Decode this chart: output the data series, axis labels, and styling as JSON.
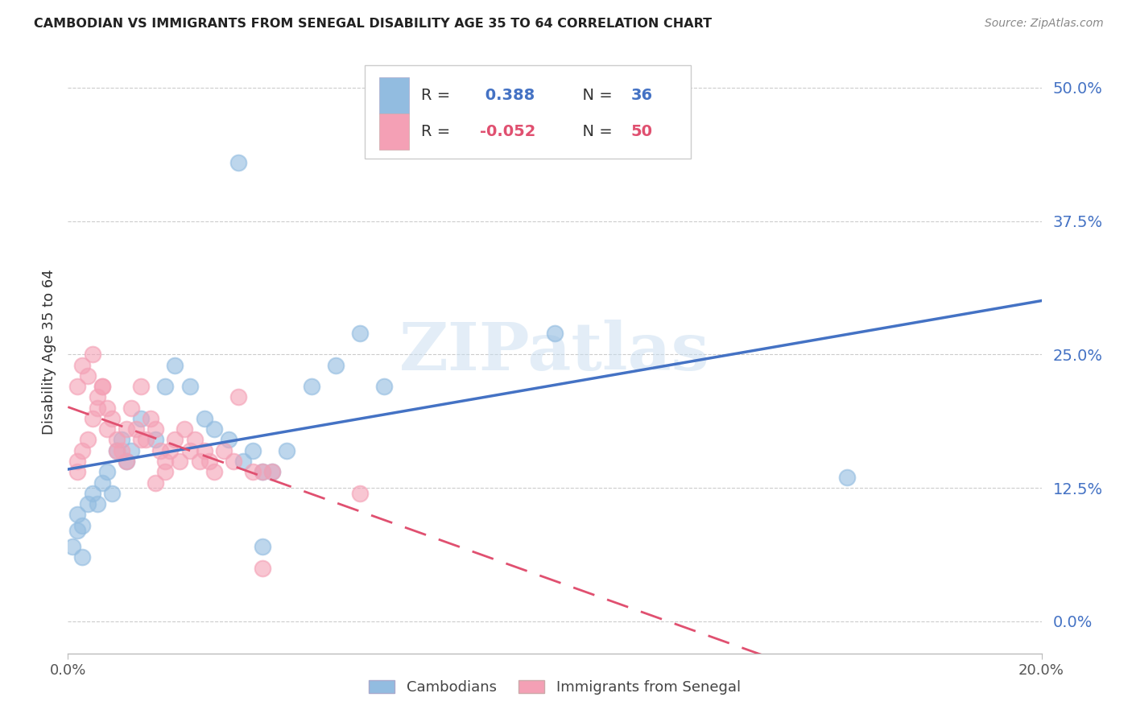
{
  "title": "CAMBODIAN VS IMMIGRANTS FROM SENEGAL DISABILITY AGE 35 TO 64 CORRELATION CHART",
  "source": "Source: ZipAtlas.com",
  "ylabel": "Disability Age 35 to 64",
  "ytick_labels": [
    "0.0%",
    "12.5%",
    "25.0%",
    "37.5%",
    "50.0%"
  ],
  "ytick_values": [
    0.0,
    0.125,
    0.25,
    0.375,
    0.5
  ],
  "xmin": 0.0,
  "xmax": 0.2,
  "ymin": -0.03,
  "ymax": 0.535,
  "cambodian_color": "#92bce0",
  "senegal_color": "#f4a0b5",
  "cambodian_line_color": "#4472c4",
  "senegal_line_color": "#e05070",
  "legend_R_color": "#4472c4",
  "legend_N_color": "#4472c4",
  "senegal_legend_R_color": "#e05070",
  "senegal_legend_N_color": "#e05070",
  "cambodian_R": 0.388,
  "cambodian_N": 36,
  "senegal_R": -0.052,
  "senegal_N": 50,
  "legend_label_cambodian": "Cambodians",
  "legend_label_senegal": "Immigrants from Senegal",
  "watermark": "ZIPatlas",
  "cambodian_scatter_x": [
    0.002,
    0.003,
    0.004,
    0.005,
    0.006,
    0.007,
    0.008,
    0.009,
    0.01,
    0.011,
    0.012,
    0.013,
    0.015,
    0.018,
    0.02,
    0.022,
    0.025,
    0.028,
    0.03,
    0.033,
    0.036,
    0.038,
    0.04,
    0.042,
    0.045,
    0.05,
    0.055,
    0.065,
    0.001,
    0.002,
    0.003,
    0.16,
    0.1,
    0.06,
    0.04,
    0.035
  ],
  "cambodian_scatter_y": [
    0.1,
    0.09,
    0.11,
    0.12,
    0.11,
    0.13,
    0.14,
    0.12,
    0.16,
    0.17,
    0.15,
    0.16,
    0.19,
    0.17,
    0.22,
    0.24,
    0.22,
    0.19,
    0.18,
    0.17,
    0.15,
    0.16,
    0.14,
    0.14,
    0.16,
    0.22,
    0.24,
    0.22,
    0.07,
    0.085,
    0.06,
    0.135,
    0.27,
    0.27,
    0.07,
    0.43
  ],
  "senegal_scatter_x": [
    0.002,
    0.003,
    0.004,
    0.005,
    0.006,
    0.007,
    0.008,
    0.009,
    0.01,
    0.011,
    0.012,
    0.013,
    0.014,
    0.015,
    0.016,
    0.017,
    0.018,
    0.019,
    0.02,
    0.021,
    0.022,
    0.023,
    0.024,
    0.025,
    0.026,
    0.027,
    0.028,
    0.029,
    0.03,
    0.032,
    0.034,
    0.035,
    0.038,
    0.04,
    0.042,
    0.002,
    0.004,
    0.006,
    0.008,
    0.01,
    0.012,
    0.015,
    0.018,
    0.02,
    0.003,
    0.005,
    0.007,
    0.06,
    0.002,
    0.04
  ],
  "senegal_scatter_y": [
    0.14,
    0.16,
    0.17,
    0.19,
    0.21,
    0.22,
    0.2,
    0.19,
    0.17,
    0.16,
    0.18,
    0.2,
    0.18,
    0.22,
    0.17,
    0.19,
    0.18,
    0.16,
    0.15,
    0.16,
    0.17,
    0.15,
    0.18,
    0.16,
    0.17,
    0.15,
    0.16,
    0.15,
    0.14,
    0.16,
    0.15,
    0.21,
    0.14,
    0.14,
    0.14,
    0.22,
    0.23,
    0.2,
    0.18,
    0.16,
    0.15,
    0.17,
    0.13,
    0.14,
    0.24,
    0.25,
    0.22,
    0.12,
    0.15,
    0.05
  ]
}
